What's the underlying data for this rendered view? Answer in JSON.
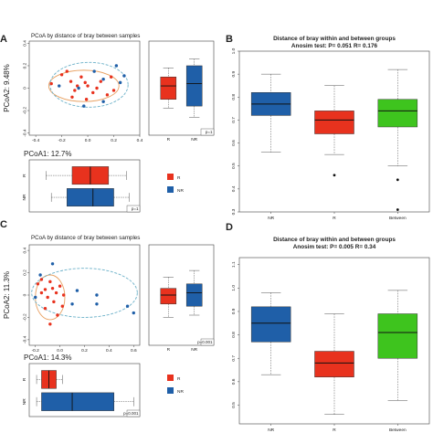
{
  "chart_data": [
    {
      "panel": "A",
      "type": "scatter",
      "title": "PCoA by distance of bray between samples",
      "xlabel": "PCoA1: 12.7%",
      "ylabel": "PCoA2: 9.48%",
      "xlim": [
        -0.45,
        0.4
      ],
      "ylim": [
        -0.42,
        0.42
      ],
      "x_ticks": [
        "-0.4",
        "-0.2",
        "0.0",
        "0.2",
        "0.4"
      ],
      "y_ticks": [
        "-0.4",
        "-0.2",
        "0",
        "0.2",
        "0.4"
      ],
      "series": [
        {
          "name": "R",
          "color": "#e8321e",
          "points": [
            [
              -0.28,
              0.04
            ],
            [
              -0.2,
              0.12
            ],
            [
              -0.16,
              0.15
            ],
            [
              -0.13,
              0.06
            ],
            [
              -0.1,
              -0.02
            ],
            [
              -0.08,
              0.02
            ],
            [
              -0.05,
              0.1
            ],
            [
              -0.02,
              0.05
            ],
            [
              0.0,
              0.02
            ],
            [
              0.04,
              -0.04
            ],
            [
              0.07,
              0.0
            ],
            [
              0.1,
              0.06
            ],
            [
              0.15,
              -0.06
            ],
            [
              0.18,
              0.1
            ],
            [
              -0.12,
              -0.08
            ],
            [
              -0.01,
              -0.1
            ],
            [
              0.2,
              -0.02
            ]
          ]
        },
        {
          "name": "NR",
          "color": "#1f5fa8",
          "points": [
            [
              -0.22,
              0.02
            ],
            [
              -0.07,
              0.0
            ],
            [
              0.05,
              0.15
            ],
            [
              0.12,
              0.08
            ],
            [
              0.22,
              0.2
            ],
            [
              0.25,
              0.05
            ],
            [
              0.12,
              -0.12
            ],
            [
              -0.03,
              -0.16
            ],
            [
              0.28,
              0.11
            ]
          ]
        }
      ],
      "ellipses": [
        {
          "group": "R",
          "color": "#e8a060",
          "cx": -0.03,
          "cy": 0.02,
          "rx": 0.27,
          "ry": 0.14
        },
        {
          "group": "NR",
          "color": "#6ab0c8",
          "cx": 0.01,
          "cy": 0.03,
          "rx": 0.3,
          "ry": 0.2
        }
      ],
      "right_box": {
        "ylim": [
          -0.42,
          0.42
        ],
        "p_label": "p=1",
        "categories": [
          "R",
          "NR"
        ],
        "boxes": [
          {
            "q1": -0.1,
            "median": 0.02,
            "q3": 0.1,
            "min": -0.18,
            "max": 0.18,
            "color": "#e8321e"
          },
          {
            "q1": -0.16,
            "median": 0.04,
            "q3": 0.2,
            "min": -0.26,
            "max": 0.26,
            "color": "#1f5fa8"
          }
        ]
      },
      "bottom_box": {
        "xlim": [
          -0.45,
          0.4
        ],
        "p_label": "p=1",
        "categories": [
          "R",
          "NR"
        ],
        "boxes": [
          {
            "q1": -0.12,
            "median": 0.02,
            "q3": 0.16,
            "min": -0.32,
            "max": 0.3,
            "color": "#e8321e"
          },
          {
            "q1": -0.16,
            "median": 0.04,
            "q3": 0.2,
            "min": -0.28,
            "max": 0.32,
            "color": "#1f5fa8"
          }
        ]
      },
      "legend": [
        {
          "label": "R",
          "color": "#e8321e"
        },
        {
          "label": "NR",
          "color": "#1f5fa8"
        }
      ]
    },
    {
      "panel": "B",
      "type": "box",
      "title": "Distance of bray within and between groups",
      "subtitle": "Anosim test: P= 0.051  R= 0.176",
      "ylim": [
        0.3,
        1.0
      ],
      "y_ticks": [
        "0.3",
        "0.4",
        "0.5",
        "0.6",
        "0.7",
        "0.8",
        "0.9",
        "1.0"
      ],
      "categories": [
        "NR",
        "R",
        "Between"
      ],
      "boxes": [
        {
          "q1": 0.72,
          "median": 0.77,
          "q3": 0.82,
          "min": 0.56,
          "max": 0.9,
          "color": "#1f5fa8",
          "outliers": []
        },
        {
          "q1": 0.64,
          "median": 0.7,
          "q3": 0.74,
          "min": 0.55,
          "max": 0.85,
          "color": "#e8321e",
          "outliers": [
            0.46
          ]
        },
        {
          "q1": 0.67,
          "median": 0.74,
          "q3": 0.79,
          "min": 0.5,
          "max": 0.92,
          "color": "#3ec41e",
          "outliers": [
            0.44,
            0.31
          ]
        }
      ]
    },
    {
      "panel": "C",
      "type": "scatter",
      "title": "PCoA by distance of bray between samples",
      "xlabel": "PCoA1: 14.3%",
      "ylabel": "PCoA2: 11.3%",
      "xlim": [
        -0.25,
        0.65
      ],
      "ylim": [
        -0.45,
        0.45
      ],
      "x_ticks": [
        "-0.2",
        "0.0",
        "0.2",
        "0.4",
        "0.6"
      ],
      "y_ticks": [
        "-0.4",
        "-0.2",
        "0",
        "0.2",
        "0.4"
      ],
      "series": [
        {
          "name": "R",
          "color": "#e8321e",
          "points": [
            [
              -0.18,
              0.1
            ],
            [
              -0.15,
              0.02
            ],
            [
              -0.12,
              0.05
            ],
            [
              -0.1,
              -0.02
            ],
            [
              -0.08,
              0.12
            ],
            [
              -0.06,
              0.06
            ],
            [
              -0.05,
              -0.06
            ],
            [
              -0.03,
              0.02
            ],
            [
              -0.12,
              -0.12
            ],
            [
              -0.02,
              -0.18
            ],
            [
              0.0,
              0.08
            ],
            [
              0.03,
              0.0
            ],
            [
              -0.08,
              -0.26
            ],
            [
              -0.15,
              0.14
            ],
            [
              0.02,
              -0.1
            ]
          ]
        },
        {
          "name": "NR",
          "color": "#1f5fa8",
          "points": [
            [
              -0.2,
              -0.02
            ],
            [
              -0.16,
              0.18
            ],
            [
              -0.06,
              0.28
            ],
            [
              0.14,
              0.04
            ],
            [
              0.3,
              -0.08
            ],
            [
              0.3,
              0.0
            ],
            [
              0.1,
              -0.08
            ],
            [
              0.55,
              -0.1
            ],
            [
              0.6,
              -0.16
            ]
          ]
        }
      ],
      "ellipses": [
        {
          "group": "R",
          "color": "#e8a060",
          "cx": -0.08,
          "cy": -0.02,
          "rx": 0.12,
          "ry": 0.2
        },
        {
          "group": "NR",
          "color": "#6ab0c8",
          "cx": 0.2,
          "cy": 0.02,
          "rx": 0.43,
          "ry": 0.22
        }
      ],
      "right_box": {
        "ylim": [
          -0.45,
          0.45
        ],
        "p_label": "p=0.001",
        "categories": [
          "R",
          "NR"
        ],
        "boxes": [
          {
            "q1": -0.08,
            "median": 0.0,
            "q3": 0.06,
            "min": -0.2,
            "max": 0.16,
            "color": "#e8321e"
          },
          {
            "q1": -0.1,
            "median": 0.02,
            "q3": 0.1,
            "min": -0.18,
            "max": 0.22,
            "color": "#1f5fa8"
          }
        ]
      },
      "bottom_box": {
        "xlim": [
          -0.25,
          0.65
        ],
        "p_label": "p=0.001",
        "categories": [
          "R",
          "NR"
        ],
        "boxes": [
          {
            "q1": -0.15,
            "median": -0.09,
            "q3": -0.03,
            "min": -0.19,
            "max": 0.02,
            "color": "#e8321e"
          },
          {
            "q1": -0.15,
            "median": 0.1,
            "q3": 0.44,
            "min": -0.19,
            "max": 0.6,
            "color": "#1f5fa8"
          }
        ]
      },
      "legend": [
        {
          "label": "R",
          "color": "#e8321e"
        },
        {
          "label": "NR",
          "color": "#1f5fa8"
        }
      ]
    },
    {
      "panel": "D",
      "type": "box",
      "title": "Distance of bray within and between groups",
      "subtitle": "Anosim test: P= 0.005  R= 0.34",
      "ylim": [
        0.42,
        1.13
      ],
      "y_ticks": [
        "0.5",
        "0.6",
        "0.7",
        "0.8",
        "0.9",
        "1.0",
        "1.1"
      ],
      "categories": [
        "NR",
        "R",
        "Between"
      ],
      "boxes": [
        {
          "q1": 0.77,
          "median": 0.85,
          "q3": 0.92,
          "min": 0.63,
          "max": 0.98,
          "color": "#1f5fa8",
          "outliers": []
        },
        {
          "q1": 0.62,
          "median": 0.68,
          "q3": 0.73,
          "min": 0.46,
          "max": 0.89,
          "color": "#e8321e",
          "outliers": []
        },
        {
          "q1": 0.7,
          "median": 0.81,
          "q3": 0.89,
          "min": 0.52,
          "max": 0.99,
          "color": "#3ec41e",
          "outliers": []
        }
      ]
    }
  ]
}
